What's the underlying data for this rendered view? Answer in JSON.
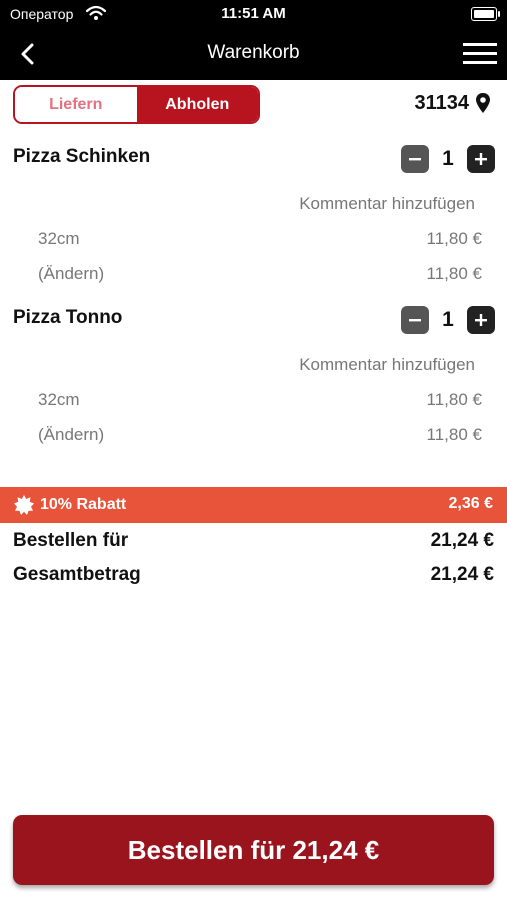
{
  "status": {
    "carrier": "Оператор",
    "time": "11:51 AM"
  },
  "nav": {
    "title": "Warenkorb"
  },
  "mode": {
    "deliver": "Liefern",
    "pickup": "Abholen"
  },
  "location": {
    "zip": "31134"
  },
  "items": [
    {
      "name": "Pizza Schinken",
      "qty": "1",
      "comment": "Kommentar hinzufügen",
      "size": "32cm",
      "size_price": "11,80 €",
      "change": "(Ändern)",
      "change_price": "11,80 €"
    },
    {
      "name": "Pizza Tonno",
      "qty": "1",
      "comment": "Kommentar hinzufügen",
      "size": "32cm",
      "size_price": "11,80 €",
      "change": "(Ändern)",
      "change_price": "11,80 €"
    }
  ],
  "discount": {
    "label": "10% Rabatt",
    "value": "2,36 €"
  },
  "summary": {
    "order_label": "Bestellen für",
    "order_value": "21,24 €",
    "total_label": "Gesamtbetrag",
    "total_value": "21,24 €"
  },
  "cta": {
    "label": "Bestellen für 21,24 €"
  },
  "colors": {
    "brand": "#b7141f",
    "discount": "#e8543a",
    "cta": "#9a141e"
  }
}
